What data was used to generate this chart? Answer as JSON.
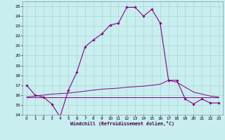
{
  "xlabel": "Windchill (Refroidissement éolien,°C)",
  "bg_color": "#c8eef0",
  "line_color": "#880088",
  "x_ticks": [
    0,
    1,
    2,
    3,
    4,
    5,
    6,
    7,
    8,
    9,
    10,
    11,
    12,
    13,
    14,
    15,
    16,
    17,
    18,
    19,
    20,
    21,
    22,
    23
  ],
  "ylim": [
    14,
    25.5
  ],
  "xlim": [
    -0.5,
    23.5
  ],
  "y_ticks": [
    14,
    15,
    16,
    17,
    18,
    19,
    20,
    21,
    22,
    23,
    24,
    25
  ],
  "line1_x": [
    0,
    1,
    2,
    3,
    4,
    5,
    6,
    7,
    8,
    9,
    10,
    11,
    12,
    13,
    14,
    15,
    16,
    17,
    18,
    19,
    20,
    21,
    22,
    23
  ],
  "line1_y": [
    17.0,
    16.0,
    15.8,
    15.1,
    13.8,
    16.5,
    18.3,
    20.9,
    21.6,
    22.2,
    23.1,
    23.3,
    24.9,
    24.9,
    24.0,
    24.7,
    23.3,
    17.5,
    17.5,
    15.6,
    15.1,
    15.6,
    15.2,
    15.2
  ],
  "line2_x": [
    0,
    1,
    2,
    3,
    4,
    5,
    6,
    7,
    8,
    9,
    10,
    11,
    12,
    13,
    14,
    15,
    16,
    17,
    18,
    19,
    20,
    21,
    22,
    23
  ],
  "line2_y": [
    15.8,
    15.8,
    15.8,
    15.8,
    15.8,
    15.8,
    15.8,
    15.8,
    15.8,
    15.8,
    15.8,
    15.8,
    15.8,
    15.8,
    15.8,
    15.8,
    15.8,
    15.8,
    15.8,
    15.8,
    15.8,
    15.8,
    15.8,
    15.8
  ],
  "line3_x": [
    0,
    1,
    2,
    3,
    4,
    5,
    6,
    7,
    8,
    9,
    10,
    11,
    12,
    13,
    14,
    15,
    16,
    17,
    18,
    19,
    20,
    21,
    22,
    23
  ],
  "line3_y": [
    15.8,
    15.9,
    16.0,
    16.1,
    16.15,
    16.2,
    16.3,
    16.4,
    16.5,
    16.6,
    16.65,
    16.7,
    16.8,
    16.85,
    16.9,
    17.0,
    17.1,
    17.5,
    17.3,
    16.8,
    16.3,
    16.1,
    15.9,
    15.8
  ]
}
